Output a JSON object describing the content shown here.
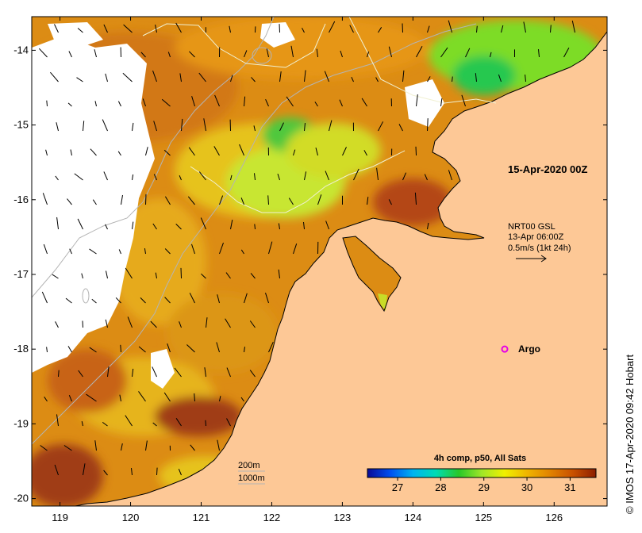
{
  "map": {
    "x_ticks": [
      "119",
      "120",
      "121",
      "122",
      "123",
      "124",
      "125",
      "126"
    ],
    "y_ticks": [
      "-14",
      "-15",
      "-16",
      "-17",
      "-18",
      "-19",
      "-20"
    ],
    "lon_range": [
      118.6,
      126.75
    ],
    "lat_range": [
      -13.55,
      -20.1
    ],
    "date_label": "15-Apr-2020 00Z",
    "current_info": {
      "line1": "NRT00 GSL",
      "line2": "13-Apr 06:00Z",
      "line3": "0.5m/s (1kt 24h)"
    },
    "argo_label": "Argo",
    "argo_position": {
      "lon": 125.3,
      "lat": -18.0
    },
    "isobath_labels": [
      "200m",
      "1000m"
    ],
    "colorbar": {
      "title": "4h comp, p50, All Sats",
      "ticks": [
        "27",
        "28",
        "29",
        "30",
        "31"
      ],
      "range": [
        26.3,
        31.6
      ],
      "colors": [
        "#0a0a96",
        "#0050f0",
        "#00b4f0",
        "#00dcb4",
        "#28c828",
        "#a0e628",
        "#f0f000",
        "#f0b400",
        "#e08200",
        "#c85000",
        "#8c1e00"
      ]
    },
    "credit": "IMOS 17-Apr-2020 09:42 Hobart",
    "colors": {
      "land": "#fdc896",
      "cloud": "#ffffff",
      "coast": "#000000",
      "isobath": "#b4b4b4",
      "front": "#f0f0d2",
      "argo": "#e600e6"
    }
  }
}
